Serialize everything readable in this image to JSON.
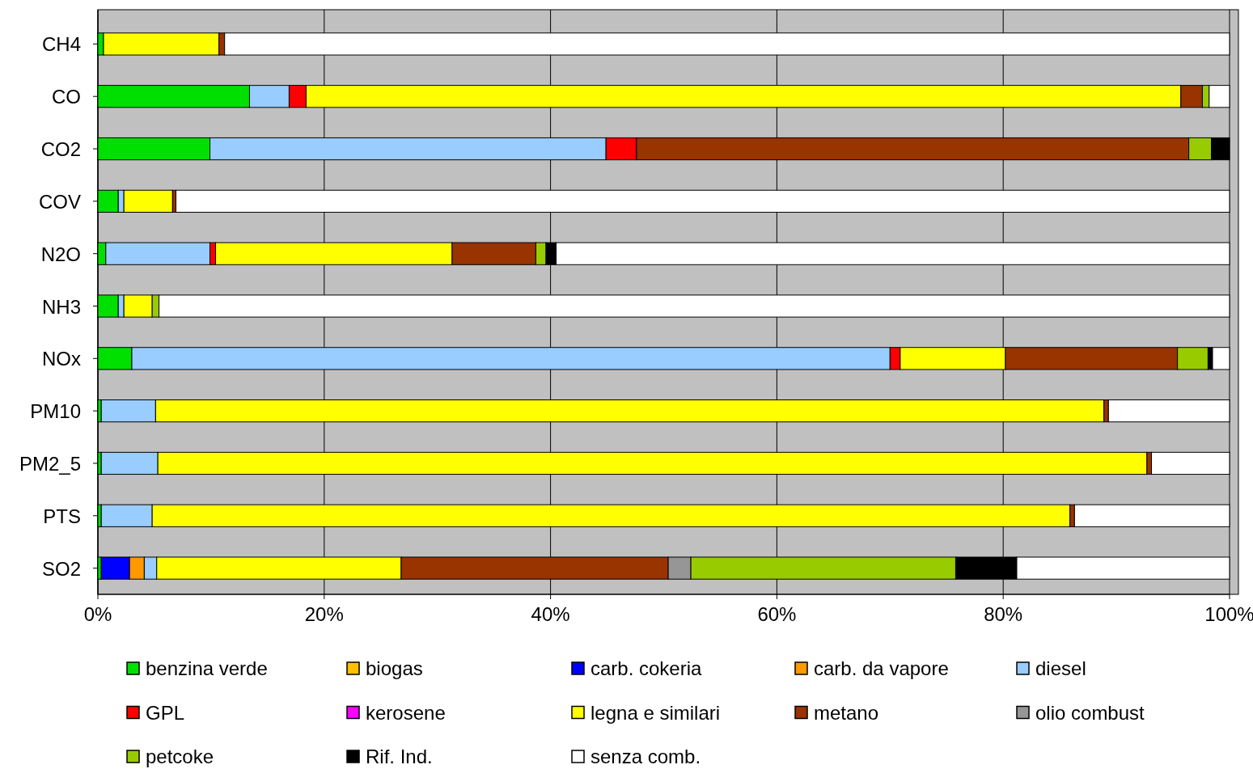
{
  "chart_data": {
    "type": "bar",
    "orientation": "horizontal",
    "stacked": true,
    "grid": "x",
    "legend": "bottom",
    "categories": [
      "CH4",
      "CO",
      "CO2",
      "COV",
      "N2O",
      "NH3",
      "NOx",
      "PM10",
      "PM2_5",
      "PTS",
      "SO2"
    ],
    "xlim": [
      0,
      100
    ],
    "xticks": [
      {
        "value": 0,
        "label": "0%"
      },
      {
        "value": 20,
        "label": "20%"
      },
      {
        "value": 40,
        "label": "40%"
      },
      {
        "value": 60,
        "label": "60%"
      },
      {
        "value": 80,
        "label": "80%"
      },
      {
        "value": 100,
        "label": "100%"
      }
    ],
    "series": [
      {
        "name": "benzina verde",
        "color": "#00e000",
        "values": [
          0.5,
          13.4,
          9.9,
          1.8,
          0.7,
          1.8,
          3.0,
          0.3,
          0.3,
          0.3,
          0.3
        ]
      },
      {
        "name": "biogas",
        "color": "#ffc000",
        "values": [
          0,
          0,
          0,
          0,
          0,
          0,
          0,
          0,
          0,
          0,
          0
        ]
      },
      {
        "name": "carb. cokeria",
        "color": "#0000ff",
        "values": [
          0,
          0,
          0,
          0,
          0,
          0,
          0,
          0,
          0,
          0,
          2.5
        ]
      },
      {
        "name": "carb. da vapore",
        "color": "#ff9900",
        "values": [
          0,
          0,
          0,
          0,
          0,
          0,
          0,
          0,
          0,
          0,
          1.3
        ]
      },
      {
        "name": "diesel",
        "color": "#99ccff",
        "values": [
          0,
          3.5,
          35.0,
          0.5,
          9.2,
          0.5,
          67.0,
          4.8,
          5.0,
          4.5,
          1.1
        ]
      },
      {
        "name": "GPL",
        "color": "#ff0000",
        "values": [
          0,
          1.5,
          2.7,
          0,
          0.5,
          0,
          0.9,
          0,
          0,
          0,
          0
        ]
      },
      {
        "name": "kerosene",
        "color": "#ff00ff",
        "values": [
          0,
          0,
          0,
          0,
          0,
          0,
          0,
          0,
          0,
          0,
          0
        ]
      },
      {
        "name": "legna e similari",
        "color": "#ffff00",
        "values": [
          10.2,
          77.3,
          0,
          4.3,
          20.9,
          2.5,
          9.3,
          83.8,
          87.4,
          81.1,
          21.6
        ]
      },
      {
        "name": "metano",
        "color": "#993300",
        "values": [
          0.5,
          1.9,
          48.8,
          0.3,
          7.4,
          0,
          15.2,
          0.4,
          0.4,
          0.4,
          23.6
        ]
      },
      {
        "name": "olio combust",
        "color": "#969696",
        "values": [
          0,
          0,
          0,
          0,
          0,
          0,
          0,
          0,
          0,
          0,
          2.0
        ]
      },
      {
        "name": "petcoke",
        "color": "#99cc00",
        "values": [
          0,
          0.6,
          2.0,
          0,
          0.9,
          0.6,
          2.7,
          0,
          0,
          0,
          23.4
        ]
      },
      {
        "name": "Rif. Ind.",
        "color": "#000000",
        "values": [
          0,
          0,
          1.6,
          0,
          0.9,
          0,
          0.4,
          0,
          0,
          0,
          5.4
        ]
      },
      {
        "name": "senza comb.",
        "color": "#ffffff",
        "values": [
          88.8,
          1.8,
          0,
          93.1,
          59.5,
          94.6,
          1.5,
          10.7,
          6.9,
          13.7,
          18.8
        ]
      }
    ]
  }
}
